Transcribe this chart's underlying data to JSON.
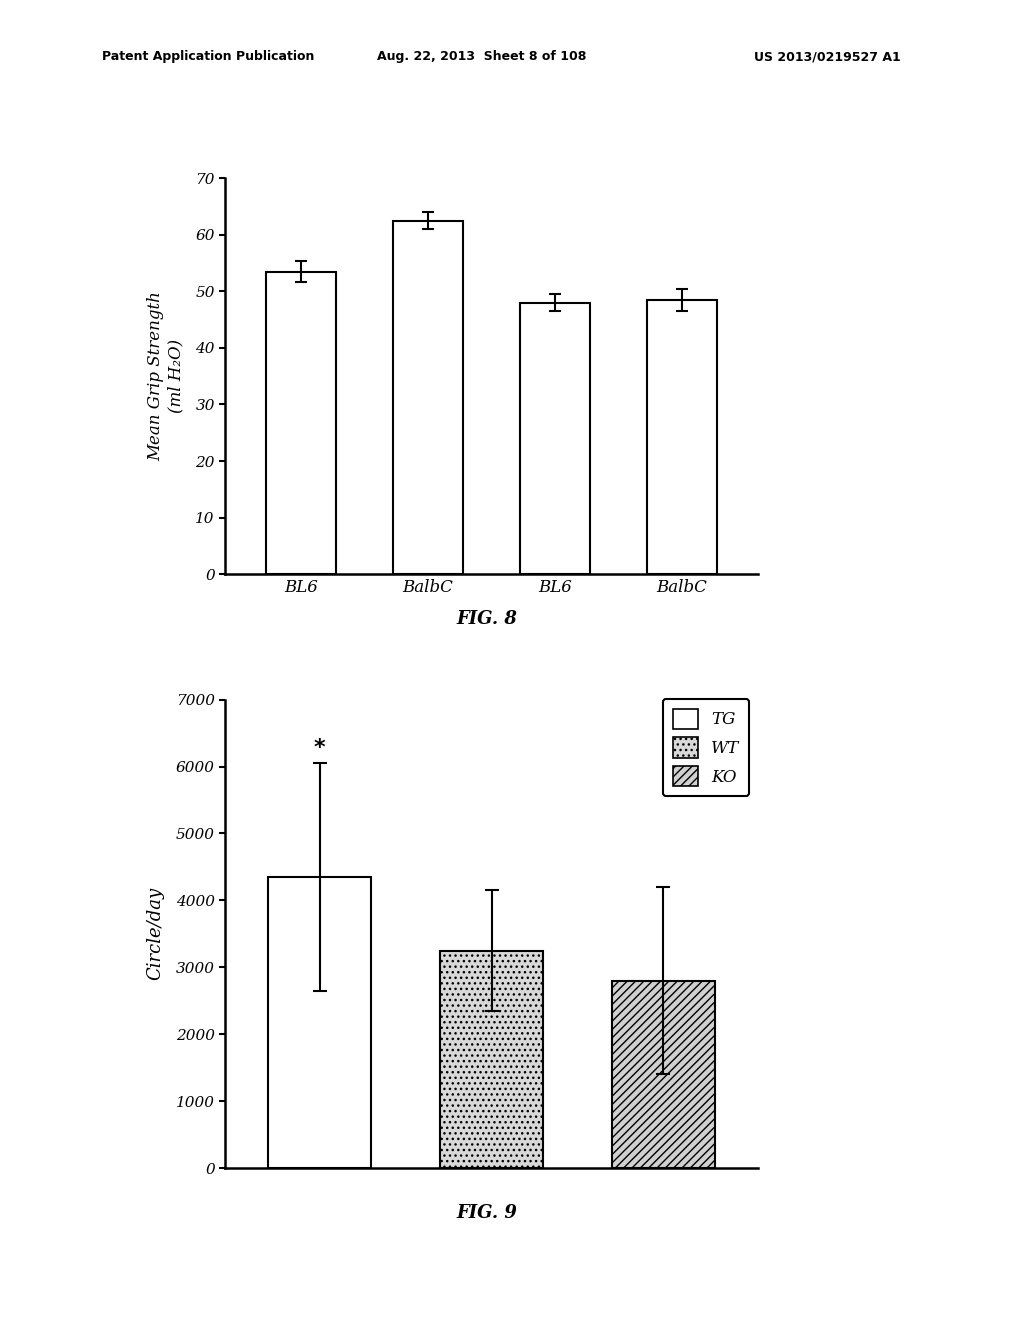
{
  "fig8": {
    "categories": [
      "BL6",
      "BalbC",
      "BL6",
      "BalbC"
    ],
    "values": [
      53.5,
      62.5,
      48.0,
      48.5
    ],
    "errors": [
      1.8,
      1.5,
      1.5,
      2.0
    ],
    "ylabel": "Mean Grip Strength\n(ml H₂O)",
    "ylim": [
      0,
      70
    ],
    "yticks": [
      0,
      10,
      20,
      30,
      40,
      50,
      60,
      70
    ],
    "caption": "FIG. 8",
    "bar_color": "#ffffff",
    "bar_edgecolor": "#000000"
  },
  "fig9": {
    "categories": [
      "TG",
      "WT",
      "KO"
    ],
    "values": [
      4350,
      3250,
      2800
    ],
    "errors": [
      1700,
      900,
      1400
    ],
    "ylabel": "Circle/day",
    "ylim": [
      0,
      7000
    ],
    "yticks": [
      0,
      1000,
      2000,
      3000,
      4000,
      5000,
      6000,
      7000
    ],
    "caption": "FIG. 9",
    "bar_edgecolor": "#000000",
    "legend_labels": [
      "TG",
      "WT",
      "KO"
    ],
    "star_label": "*"
  },
  "header_left": "Patent Application Publication",
  "header_mid": "Aug. 22, 2013  Sheet 8 of 108",
  "header_right": "US 2013/0219527 A1",
  "bg_color": "#ffffff"
}
